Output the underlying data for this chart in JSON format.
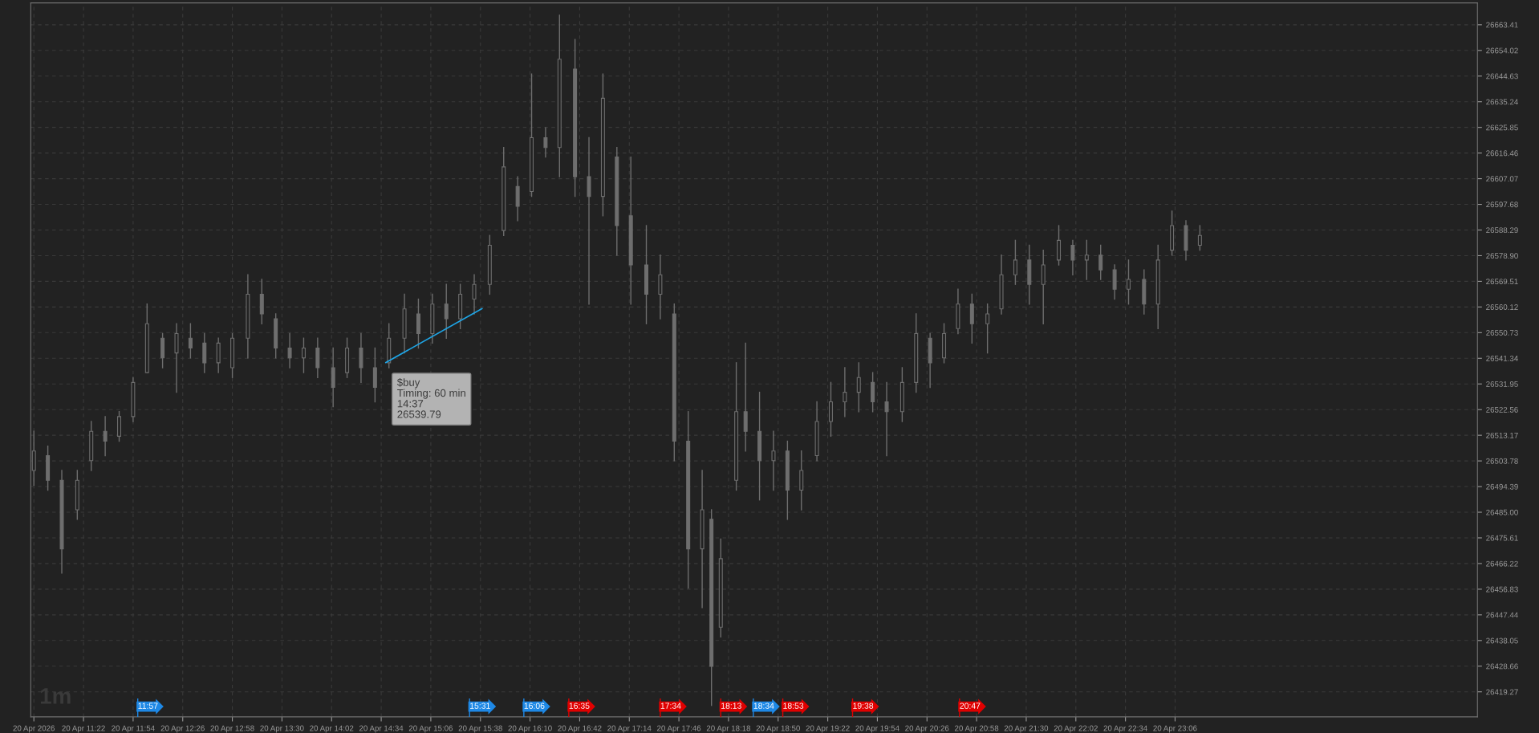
{
  "chart_data": {
    "type": "candlestick",
    "xlim": [
      "2026-04-20T10:48",
      "2026-04-21T02:21"
    ],
    "ylim": [
      26410.1,
      26671.4
    ],
    "xticks": [
      {
        "value": "2026-04-20T10:50",
        "label": "20 Apr 2026"
      },
      {
        "value": "2026-04-20T11:22",
        "label": "20 Apr 11:22"
      },
      {
        "value": "2026-04-20T11:54",
        "label": "20 Apr 11:54"
      },
      {
        "value": "2026-04-20T12:26",
        "label": "20 Apr 12:26"
      },
      {
        "value": "2026-04-20T12:58",
        "label": "20 Apr 12:58"
      },
      {
        "value": "2026-04-20T13:30",
        "label": "20 Apr 13:30"
      },
      {
        "value": "2026-04-20T14:02",
        "label": "20 Apr 14:02"
      },
      {
        "value": "2026-04-20T14:34",
        "label": "20 Apr 14:34"
      },
      {
        "value": "2026-04-20T15:06",
        "label": "20 Apr 15:06"
      },
      {
        "value": "2026-04-20T15:38",
        "label": "20 Apr 15:38"
      },
      {
        "value": "2026-04-20T16:10",
        "label": "20 Apr 16:10"
      },
      {
        "value": "2026-04-20T16:42",
        "label": "20 Apr 16:42"
      },
      {
        "value": "2026-04-20T17:14",
        "label": "20 Apr 17:14"
      },
      {
        "value": "2026-04-20T17:46",
        "label": "20 Apr 17:46"
      },
      {
        "value": "2026-04-20T18:18",
        "label": "20 Apr 18:18"
      },
      {
        "value": "2026-04-20T18:50",
        "label": "20 Apr 18:50"
      },
      {
        "value": "2026-04-20T19:22",
        "label": "20 Apr 19:22"
      },
      {
        "value": "2026-04-20T19:54",
        "label": "20 Apr 19:54"
      },
      {
        "value": "2026-04-20T20:26",
        "label": "20 Apr 20:26"
      },
      {
        "value": "2026-04-20T20:58",
        "label": "20 Apr 20:58"
      },
      {
        "value": "2026-04-20T21:30",
        "label": "20 Apr 21:30"
      },
      {
        "value": "2026-04-20T22:02",
        "label": "20 Apr 22:02"
      },
      {
        "value": "2026-04-20T22:34",
        "label": "20 Apr 22:34"
      },
      {
        "value": "2026-04-20T23:06",
        "label": "20 Apr 23:06"
      }
    ],
    "yticks": [
      26419.27,
      26428.66,
      26438.05,
      26447.44,
      26456.83,
      26466.22,
      26475.61,
      {
        "value": 26485,
        "label": "26485.00"
      },
      26494.39,
      26503.78,
      26513.17,
      26522.56,
      26531.95,
      26541.34,
      26550.73,
      26560.12,
      26569.51,
      {
        "value": 26578.9,
        "label": "26578.90"
      },
      26588.29,
      26597.68,
      26607.07,
      26616.46,
      26625.85,
      26635.24,
      26644.63,
      26654.02,
      26663.41
    ],
    "grid": true,
    "series": [
      {
        "type": "candlestick",
        "color": "#6e6e6e",
        "x": [
          "2026-04-20T10:50",
          "2026-04-20T10:59",
          "2026-04-20T11:08",
          "2026-04-20T11:18",
          "2026-04-20T11:27",
          "2026-04-20T11:36",
          "2026-04-20T11:45",
          "2026-04-20T11:54",
          "2026-04-20T12:03",
          "2026-04-20T12:13",
          "2026-04-20T12:22",
          "2026-04-20T12:31",
          "2026-04-20T12:40",
          "2026-04-20T12:49",
          "2026-04-20T12:58",
          "2026-04-20T13:08",
          "2026-04-20T13:17",
          "2026-04-20T13:26",
          "2026-04-20T13:35",
          "2026-04-20T13:44",
          "2026-04-20T13:53",
          "2026-04-20T14:03",
          "2026-04-20T14:12",
          "2026-04-20T14:21",
          "2026-04-20T14:30",
          "2026-04-20T14:39",
          "2026-04-20T14:49",
          "2026-04-20T14:58",
          "2026-04-20T15:07",
          "2026-04-20T15:16",
          "2026-04-20T15:25",
          "2026-04-20T15:34",
          "2026-04-20T15:44",
          "2026-04-20T15:53",
          "2026-04-20T16:02",
          "2026-04-20T16:11",
          "2026-04-20T16:20",
          "2026-04-20T16:29",
          "2026-04-20T16:39",
          "2026-04-20T16:48",
          "2026-04-20T16:57",
          "2026-04-20T17:06",
          "2026-04-20T17:15",
          "2026-04-20T17:25",
          "2026-04-20T17:34",
          "2026-04-20T17:43",
          "2026-04-20T17:52",
          "2026-04-20T18:01",
          "2026-04-20T18:07",
          "2026-04-20T18:13",
          "2026-04-20T18:23",
          "2026-04-20T18:29",
          "2026-04-20T18:38",
          "2026-04-20T18:47",
          "2026-04-20T18:56",
          "2026-04-20T19:05",
          "2026-04-20T19:15",
          "2026-04-20T19:24",
          "2026-04-20T19:33",
          "2026-04-20T19:42",
          "2026-04-20T19:51",
          "2026-04-20T20:00",
          "2026-04-20T20:10",
          "2026-04-20T20:19",
          "2026-04-20T20:28",
          "2026-04-20T20:37",
          "2026-04-20T20:46",
          "2026-04-20T20:55",
          "2026-04-20T21:05",
          "2026-04-20T21:14",
          "2026-04-20T21:23",
          "2026-04-20T21:32",
          "2026-04-20T21:41",
          "2026-04-20T21:51",
          "2026-04-20T22:00",
          "2026-04-20T22:09",
          "2026-04-20T22:18",
          "2026-04-20T22:27",
          "2026-04-20T22:36",
          "2026-04-20T22:46",
          "2026-04-20T22:55",
          "2026-04-20T23:04",
          "2026-04-20T23:13",
          "2026-04-20T23:22"
        ],
        "ohlc": [
          [
            26500.3,
            26514.6,
            26494.9,
            26507.4
          ],
          [
            26505.7,
            26509.2,
            26493.1,
            26496.7
          ],
          [
            26496.7,
            26500.3,
            26462.7,
            26471.6
          ],
          [
            26485.9,
            26500.3,
            26482.4,
            26496.7
          ],
          [
            26503.9,
            26518.2,
            26500.3,
            26514.6
          ],
          [
            26514.6,
            26520.0,
            26505.7,
            26511.0
          ],
          [
            26512.8,
            26521.8,
            26511.0,
            26520.0
          ],
          [
            26520.0,
            26534.3,
            26518.2,
            26532.5
          ],
          [
            26536.1,
            26561.2,
            26536.1,
            26554.0
          ],
          [
            26548.7,
            26550.4,
            26537.9,
            26541.5
          ],
          [
            26543.3,
            26554.0,
            26528.9,
            26550.4
          ],
          [
            26548.7,
            26554.0,
            26541.5,
            26545.1
          ],
          [
            26546.9,
            26550.4,
            26536.1,
            26539.7
          ],
          [
            26539.7,
            26548.7,
            26536.1,
            26546.9
          ],
          [
            26537.9,
            26550.4,
            26534.3,
            26548.7
          ],
          [
            26548.7,
            26571.9,
            26541.5,
            26564.8
          ],
          [
            26564.8,
            26570.2,
            26554.0,
            26557.6
          ],
          [
            26555.8,
            26557.6,
            26541.5,
            26545.1
          ],
          [
            26545.1,
            26550.4,
            26537.9,
            26541.5
          ],
          [
            26541.5,
            26548.7,
            26536.1,
            26545.1
          ],
          [
            26545.1,
            26548.7,
            26534.3,
            26537.9
          ],
          [
            26537.9,
            26545.1,
            26523.6,
            26530.7
          ],
          [
            26536.1,
            26548.7,
            26534.3,
            26545.1
          ],
          [
            26545.1,
            26550.4,
            26532.5,
            26537.9
          ],
          [
            26537.9,
            26545.1,
            26525.4,
            26530.7
          ],
          [
            26539.7,
            26554.0,
            26537.9,
            26548.7
          ],
          [
            26548.7,
            26564.8,
            26543.3,
            26559.4
          ],
          [
            26557.6,
            26563.0,
            26545.1,
            26550.4
          ],
          [
            26550.4,
            26564.8,
            26546.9,
            26561.2
          ],
          [
            26561.2,
            26568.4,
            26548.7,
            26555.8
          ],
          [
            26555.8,
            26568.4,
            26552.2,
            26564.8
          ],
          [
            26563.0,
            26571.9,
            26557.6,
            26568.4
          ],
          [
            26568.4,
            26586.3,
            26564.8,
            26582.7
          ],
          [
            26588.1,
            26618.5,
            26586.3,
            26611.4
          ],
          [
            26604.2,
            26607.8,
            26591.7,
            26597.0
          ],
          [
            26602.4,
            26645.4,
            26600.6,
            26622.1
          ],
          [
            26622.1,
            26625.7,
            26615.0,
            26618.5
          ],
          [
            26618.5,
            26666.9,
            26607.8,
            26650.8
          ],
          [
            26647.2,
            26658.0,
            26600.6,
            26607.8
          ],
          [
            26607.8,
            26622.1,
            26561.2,
            26600.6
          ],
          [
            26600.6,
            26645.4,
            26593.5,
            26636.5
          ],
          [
            26615.0,
            26618.5,
            26579.1,
            26589.9
          ],
          [
            26593.5,
            26615.0,
            26561.2,
            26575.5
          ],
          [
            26575.5,
            26589.9,
            26554.0,
            26564.8
          ],
          [
            26564.8,
            26579.1,
            26555.8,
            26571.9
          ],
          [
            26557.6,
            26561.2,
            26503.9,
            26511.0
          ],
          [
            26511.0,
            26521.8,
            26457.3,
            26471.6
          ],
          [
            26471.6,
            26500.3,
            26450.1,
            26485.9
          ],
          [
            26482.4,
            26485.9,
            26414.3,
            26428.6
          ],
          [
            26442.9,
            26475.2,
            26439.4,
            26468.0
          ],
          [
            26496.7,
            26539.7,
            26493.1,
            26521.8
          ],
          [
            26521.8,
            26546.9,
            26507.4,
            26514.6
          ],
          [
            26514.6,
            26528.9,
            26489.5,
            26503.9
          ],
          [
            26503.9,
            26514.6,
            26493.1,
            26507.4
          ],
          [
            26507.4,
            26511.0,
            26482.4,
            26493.1
          ],
          [
            26493.1,
            26507.4,
            26485.9,
            26500.3
          ],
          [
            26505.7,
            26525.4,
            26503.9,
            26518.2
          ],
          [
            26518.2,
            26532.5,
            26512.8,
            26525.4
          ],
          [
            26525.4,
            26537.9,
            26520.0,
            26528.9
          ],
          [
            26528.9,
            26539.7,
            26521.8,
            26534.3
          ],
          [
            26532.5,
            26536.1,
            26521.8,
            26525.4
          ],
          [
            26525.4,
            26532.5,
            26505.7,
            26521.8
          ],
          [
            26521.8,
            26537.9,
            26518.2,
            26532.5
          ],
          [
            26532.5,
            26557.6,
            26528.9,
            26550.4
          ],
          [
            26548.7,
            26550.4,
            26530.7,
            26539.7
          ],
          [
            26541.5,
            26554.0,
            26539.7,
            26550.4
          ],
          [
            26552.2,
            26566.6,
            26550.4,
            26561.2
          ],
          [
            26561.2,
            26564.8,
            26546.9,
            26554.0
          ],
          [
            26554.0,
            26561.2,
            26543.3,
            26557.6
          ],
          [
            26559.4,
            26579.1,
            26557.6,
            26571.9
          ],
          [
            26571.9,
            26584.5,
            26568.4,
            26577.3
          ],
          [
            26577.3,
            26582.7,
            26561.2,
            26568.4
          ],
          [
            26568.4,
            26580.9,
            26554.0,
            26575.5
          ],
          [
            26577.3,
            26589.9,
            26575.5,
            26584.5
          ],
          [
            26582.7,
            26584.5,
            26571.9,
            26577.3
          ],
          [
            26577.3,
            26584.5,
            26570.2,
            26579.1
          ],
          [
            26579.1,
            26582.7,
            26570.2,
            26573.7
          ],
          [
            26573.7,
            26575.5,
            26563.0,
            26566.6
          ],
          [
            26566.6,
            26577.3,
            26561.2,
            26570.2
          ],
          [
            26570.2,
            26573.7,
            26557.6,
            26561.2
          ],
          [
            26561.2,
            26582.7,
            26552.2,
            26577.3
          ],
          [
            26580.9,
            26595.2,
            26579.1,
            26589.9
          ],
          [
            26589.9,
            26591.7,
            26577.3,
            26580.9
          ],
          [
            26582.7,
            26589.9,
            26580.9,
            26586.3
          ]
        ]
      },
      {
        "type": "line",
        "color": "#1ea5e6",
        "x": [
          "2026-04-20T14:37",
          "2026-04-20T15:39"
        ],
        "values": [
          26539.8,
          26559.5
        ]
      }
    ],
    "ref_lines": [
      {
        "axis": "x",
        "value": "2026-04-20T11:57",
        "label": "11:57",
        "color": "#1e88e5"
      },
      {
        "axis": "x",
        "value": "2026-04-20T15:31",
        "label": "15:31",
        "color": "#1e88e5"
      },
      {
        "axis": "x",
        "value": "2026-04-20T16:06",
        "label": "16:06",
        "color": "#1e88e5"
      },
      {
        "axis": "x",
        "value": "2026-04-20T16:35",
        "label": "16:35",
        "color": "#e00000"
      },
      {
        "axis": "x",
        "value": "2026-04-20T17:34",
        "label": "17:34",
        "color": "#e00000"
      },
      {
        "axis": "x",
        "value": "2026-04-20T18:13",
        "label": "18:13",
        "color": "#e00000"
      },
      {
        "axis": "x",
        "value": "2026-04-20T18:34",
        "label": "18:34",
        "color": "#1e88e5"
      },
      {
        "axis": "x",
        "value": "2026-04-20T18:53",
        "label": "18:53",
        "color": "#e00000"
      },
      {
        "axis": "x",
        "value": "2026-04-20T19:38",
        "label": "19:38",
        "color": "#e00000"
      },
      {
        "axis": "x",
        "value": "2026-04-20T20:47",
        "label": "20:47",
        "color": "#e00000"
      }
    ],
    "annotations": [
      "1m",
      {
        "text": "$buy\nTiming: 60 min\n14:37\n26539.79",
        "x": "2026-04-20T14:37",
        "y": 26539.79
      }
    ]
  }
}
